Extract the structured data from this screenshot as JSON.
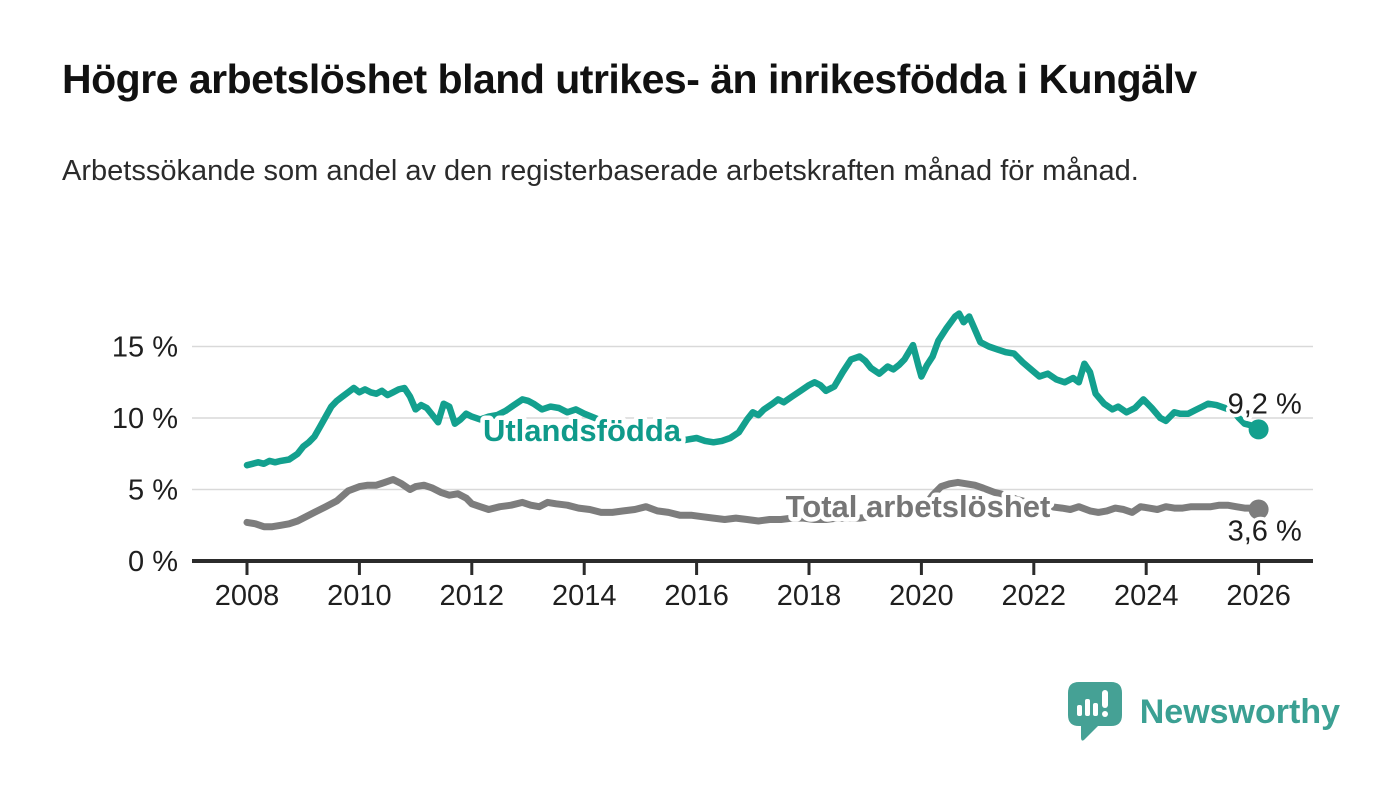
{
  "title": "Högre arbetslöshet bland utrikes- än inrikesfödda i Kungälv",
  "subtitle": "Arbetssökande som andel av den registerbaserade arbetskraften månad för månad.",
  "branding": {
    "name": "Newsworthy",
    "color": "#3ba093"
  },
  "colors": {
    "foreign_line": "#13a08e",
    "total_line": "#7d7d7d",
    "grid": "#d9d9d9",
    "axis": "#2b2b2b",
    "tick_text": "#1f1f1f",
    "background": "#ffffff"
  },
  "chart_data": {
    "type": "line",
    "title": "Högre arbetslöshet bland utrikes- än inrikesfödda i Kungälv",
    "subtitle": "Arbetssökande som andel av den registerbaserade arbetskraften månad för månad.",
    "grid": true,
    "legend": "inline-labels",
    "x_axis": {
      "range": [
        2007.0,
        2027.0
      ],
      "ticks": [
        2008,
        2010,
        2012,
        2014,
        2016,
        2018,
        2020,
        2022,
        2024,
        2026
      ],
      "labels": [
        "2008",
        "2010",
        "2012",
        "2014",
        "2016",
        "2018",
        "2020",
        "2022",
        "2024",
        "2026"
      ]
    },
    "y_axis": {
      "range": [
        0,
        17.5
      ],
      "ticks": [
        0,
        5,
        10,
        15
      ],
      "labels": [
        "0 %",
        "5 %",
        "10 %",
        "15 %"
      ]
    },
    "series": [
      {
        "name": "Utlandsfödda",
        "color": "#13a08e",
        "label_color": "#0f9a8a",
        "width": 6.5,
        "end_label": "9,2 %",
        "end_value": 9.2,
        "end_label_offset": [
          -31,
          -16
        ],
        "label_anchor": {
          "year": 2013.96,
          "pct": 9.16
        },
        "points": [
          [
            2008.0,
            6.7
          ],
          [
            2008.1,
            6.8
          ],
          [
            2008.2,
            6.9
          ],
          [
            2008.3,
            6.8
          ],
          [
            2008.4,
            7.0
          ],
          [
            2008.5,
            6.9
          ],
          [
            2008.6,
            7.0
          ],
          [
            2008.75,
            7.1
          ],
          [
            2008.9,
            7.5
          ],
          [
            2009.0,
            8.0
          ],
          [
            2009.1,
            8.3
          ],
          [
            2009.2,
            8.7
          ],
          [
            2009.3,
            9.4
          ],
          [
            2009.4,
            10.1
          ],
          [
            2009.5,
            10.8
          ],
          [
            2009.6,
            11.2
          ],
          [
            2009.7,
            11.5
          ],
          [
            2009.8,
            11.8
          ],
          [
            2009.9,
            12.1
          ],
          [
            2010.0,
            11.8
          ],
          [
            2010.1,
            12.0
          ],
          [
            2010.2,
            11.8
          ],
          [
            2010.3,
            11.7
          ],
          [
            2010.4,
            11.9
          ],
          [
            2010.5,
            11.6
          ],
          [
            2010.6,
            11.8
          ],
          [
            2010.7,
            12.0
          ],
          [
            2010.8,
            12.1
          ],
          [
            2010.9,
            11.5
          ],
          [
            2011.0,
            10.6
          ],
          [
            2011.1,
            10.9
          ],
          [
            2011.2,
            10.7
          ],
          [
            2011.3,
            10.2
          ],
          [
            2011.4,
            9.7
          ],
          [
            2011.5,
            11.0
          ],
          [
            2011.6,
            10.8
          ],
          [
            2011.7,
            9.6
          ],
          [
            2011.8,
            9.9
          ],
          [
            2011.9,
            10.3
          ],
          [
            2012.0,
            10.1
          ],
          [
            2012.15,
            9.9
          ],
          [
            2012.3,
            10.1
          ],
          [
            2012.45,
            10.2
          ],
          [
            2012.6,
            10.5
          ],
          [
            2012.75,
            10.9
          ],
          [
            2012.9,
            11.3
          ],
          [
            2013.0,
            11.2
          ],
          [
            2013.1,
            11.0
          ],
          [
            2013.25,
            10.6
          ],
          [
            2013.4,
            10.8
          ],
          [
            2013.55,
            10.7
          ],
          [
            2013.7,
            10.4
          ],
          [
            2013.85,
            10.6
          ],
          [
            2014.0,
            10.3
          ],
          [
            2014.25,
            9.9
          ],
          [
            2014.5,
            9.6
          ],
          [
            2014.75,
            9.3
          ],
          [
            2015.0,
            9.0
          ],
          [
            2015.25,
            8.8
          ],
          [
            2015.5,
            8.6
          ],
          [
            2015.7,
            8.4
          ],
          [
            2015.85,
            8.5
          ],
          [
            2016.0,
            8.6
          ],
          [
            2016.15,
            8.4
          ],
          [
            2016.3,
            8.3
          ],
          [
            2016.45,
            8.4
          ],
          [
            2016.6,
            8.6
          ],
          [
            2016.75,
            9.0
          ],
          [
            2016.9,
            9.9
          ],
          [
            2017.0,
            10.4
          ],
          [
            2017.1,
            10.2
          ],
          [
            2017.2,
            10.6
          ],
          [
            2017.35,
            11.0
          ],
          [
            2017.45,
            11.3
          ],
          [
            2017.55,
            11.1
          ],
          [
            2017.7,
            11.5
          ],
          [
            2017.85,
            11.9
          ],
          [
            2018.0,
            12.3
          ],
          [
            2018.1,
            12.5
          ],
          [
            2018.2,
            12.3
          ],
          [
            2018.3,
            11.9
          ],
          [
            2018.45,
            12.2
          ],
          [
            2018.6,
            13.2
          ],
          [
            2018.75,
            14.1
          ],
          [
            2018.9,
            14.3
          ],
          [
            2019.0,
            14.0
          ],
          [
            2019.1,
            13.5
          ],
          [
            2019.25,
            13.1
          ],
          [
            2019.4,
            13.6
          ],
          [
            2019.5,
            13.4
          ],
          [
            2019.6,
            13.7
          ],
          [
            2019.7,
            14.1
          ],
          [
            2019.85,
            15.1
          ],
          [
            2019.95,
            13.6
          ],
          [
            2020.0,
            12.9
          ],
          [
            2020.1,
            13.7
          ],
          [
            2020.2,
            14.3
          ],
          [
            2020.3,
            15.4
          ],
          [
            2020.45,
            16.3
          ],
          [
            2020.6,
            17.1
          ],
          [
            2020.67,
            17.3
          ],
          [
            2020.75,
            16.7
          ],
          [
            2020.85,
            17.1
          ],
          [
            2020.95,
            16.2
          ],
          [
            2021.05,
            15.3
          ],
          [
            2021.2,
            15.0
          ],
          [
            2021.35,
            14.8
          ],
          [
            2021.5,
            14.6
          ],
          [
            2021.65,
            14.5
          ],
          [
            2021.8,
            13.9
          ],
          [
            2021.95,
            13.4
          ],
          [
            2022.1,
            12.9
          ],
          [
            2022.25,
            13.1
          ],
          [
            2022.4,
            12.7
          ],
          [
            2022.55,
            12.5
          ],
          [
            2022.7,
            12.8
          ],
          [
            2022.8,
            12.5
          ],
          [
            2022.9,
            13.8
          ],
          [
            2023.0,
            13.2
          ],
          [
            2023.1,
            11.7
          ],
          [
            2023.25,
            11.0
          ],
          [
            2023.4,
            10.6
          ],
          [
            2023.5,
            10.8
          ],
          [
            2023.65,
            10.4
          ],
          [
            2023.8,
            10.7
          ],
          [
            2023.95,
            11.3
          ],
          [
            2024.1,
            10.7
          ],
          [
            2024.25,
            10.0
          ],
          [
            2024.35,
            9.8
          ],
          [
            2024.5,
            10.4
          ],
          [
            2024.6,
            10.3
          ],
          [
            2024.75,
            10.3
          ],
          [
            2024.9,
            10.6
          ],
          [
            2025.0,
            10.8
          ],
          [
            2025.1,
            11.0
          ],
          [
            2025.25,
            10.9
          ],
          [
            2025.4,
            10.7
          ],
          [
            2025.55,
            10.5
          ],
          [
            2025.65,
            10.0
          ],
          [
            2025.75,
            9.6
          ],
          [
            2025.85,
            9.5
          ],
          [
            2026.0,
            9.2
          ]
        ]
      },
      {
        "name": "Total arbetslöshet",
        "color": "#7d7d7d",
        "label_color": "#767676",
        "width": 7,
        "end_label": "3,6 %",
        "end_value": 3.6,
        "end_label_offset": [
          -31,
          31
        ],
        "label_anchor": {
          "year": 2019.94,
          "pct": 3.85
        },
        "points": [
          [
            2008.0,
            2.7
          ],
          [
            2008.15,
            2.6
          ],
          [
            2008.3,
            2.4
          ],
          [
            2008.45,
            2.4
          ],
          [
            2008.6,
            2.5
          ],
          [
            2008.75,
            2.6
          ],
          [
            2008.9,
            2.8
          ],
          [
            2009.0,
            3.0
          ],
          [
            2009.2,
            3.4
          ],
          [
            2009.4,
            3.8
          ],
          [
            2009.6,
            4.2
          ],
          [
            2009.8,
            4.9
          ],
          [
            2010.0,
            5.2
          ],
          [
            2010.15,
            5.3
          ],
          [
            2010.3,
            5.3
          ],
          [
            2010.45,
            5.5
          ],
          [
            2010.6,
            5.7
          ],
          [
            2010.75,
            5.4
          ],
          [
            2010.9,
            5.0
          ],
          [
            2011.0,
            5.2
          ],
          [
            2011.15,
            5.3
          ],
          [
            2011.3,
            5.1
          ],
          [
            2011.45,
            4.8
          ],
          [
            2011.6,
            4.6
          ],
          [
            2011.75,
            4.7
          ],
          [
            2011.9,
            4.4
          ],
          [
            2012.0,
            4.0
          ],
          [
            2012.15,
            3.8
          ],
          [
            2012.3,
            3.6
          ],
          [
            2012.5,
            3.8
          ],
          [
            2012.7,
            3.9
          ],
          [
            2012.9,
            4.1
          ],
          [
            2013.05,
            3.9
          ],
          [
            2013.2,
            3.8
          ],
          [
            2013.35,
            4.1
          ],
          [
            2013.5,
            4.0
          ],
          [
            2013.7,
            3.9
          ],
          [
            2013.9,
            3.7
          ],
          [
            2014.1,
            3.6
          ],
          [
            2014.3,
            3.4
          ],
          [
            2014.5,
            3.4
          ],
          [
            2014.7,
            3.5
          ],
          [
            2014.9,
            3.6
          ],
          [
            2015.1,
            3.8
          ],
          [
            2015.3,
            3.5
          ],
          [
            2015.5,
            3.4
          ],
          [
            2015.7,
            3.2
          ],
          [
            2015.9,
            3.2
          ],
          [
            2016.1,
            3.1
          ],
          [
            2016.3,
            3.0
          ],
          [
            2016.5,
            2.9
          ],
          [
            2016.7,
            3.0
          ],
          [
            2016.9,
            2.9
          ],
          [
            2017.1,
            2.8
          ],
          [
            2017.3,
            2.9
          ],
          [
            2017.5,
            2.9
          ],
          [
            2017.7,
            3.0
          ],
          [
            2017.9,
            3.0
          ],
          [
            2018.1,
            2.9
          ],
          [
            2018.3,
            2.9
          ],
          [
            2018.5,
            3.0
          ],
          [
            2018.7,
            3.0
          ],
          [
            2018.9,
            3.0
          ],
          [
            2019.1,
            3.1
          ],
          [
            2019.3,
            3.1
          ],
          [
            2019.5,
            3.2
          ],
          [
            2019.7,
            3.3
          ],
          [
            2019.9,
            3.5
          ],
          [
            2020.05,
            3.8
          ],
          [
            2020.2,
            4.6
          ],
          [
            2020.35,
            5.2
          ],
          [
            2020.5,
            5.4
          ],
          [
            2020.65,
            5.5
          ],
          [
            2020.8,
            5.4
          ],
          [
            2020.95,
            5.3
          ],
          [
            2021.1,
            5.1
          ],
          [
            2021.3,
            4.8
          ],
          [
            2021.5,
            4.6
          ],
          [
            2021.7,
            4.3
          ],
          [
            2021.9,
            4.1
          ],
          [
            2022.1,
            3.9
          ],
          [
            2022.3,
            3.8
          ],
          [
            2022.5,
            3.7
          ],
          [
            2022.65,
            3.6
          ],
          [
            2022.8,
            3.8
          ],
          [
            2023.0,
            3.5
          ],
          [
            2023.15,
            3.4
          ],
          [
            2023.3,
            3.5
          ],
          [
            2023.45,
            3.7
          ],
          [
            2023.6,
            3.6
          ],
          [
            2023.75,
            3.4
          ],
          [
            2023.9,
            3.8
          ],
          [
            2024.05,
            3.7
          ],
          [
            2024.2,
            3.6
          ],
          [
            2024.35,
            3.8
          ],
          [
            2024.5,
            3.7
          ],
          [
            2024.65,
            3.7
          ],
          [
            2024.8,
            3.8
          ],
          [
            2025.0,
            3.8
          ],
          [
            2025.15,
            3.8
          ],
          [
            2025.3,
            3.9
          ],
          [
            2025.45,
            3.9
          ],
          [
            2025.6,
            3.8
          ],
          [
            2025.75,
            3.7
          ],
          [
            2025.9,
            3.7
          ],
          [
            2026.0,
            3.6
          ]
        ]
      }
    ]
  }
}
